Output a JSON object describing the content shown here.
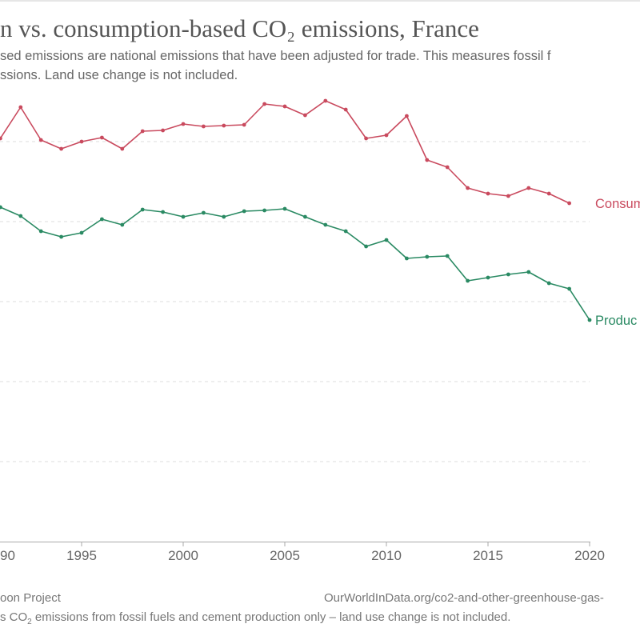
{
  "header": {
    "title": "n vs. consumption-based CO₂ emissions, France",
    "subtitle_line1": "sed emissions are national emissions that have been adjusted for trade. This measures fossil f",
    "subtitle_line2": "ssions. Land use change is not included."
  },
  "footer": {
    "source": "oon Project",
    "url": "OurWorldInData.org/co2-and-other-greenhouse-gas-",
    "note_prefix": "s CO",
    "note_sub": "2",
    "note_rest": " emissions from fossil fuels and cement production only – land use change is not included."
  },
  "chart_data": {
    "type": "line",
    "title": "n vs. consumption-based CO₂ emissions, France",
    "xlim": [
      1990,
      2020
    ],
    "ylim": [
      0,
      550
    ],
    "grid": true,
    "x_tick_labels": [
      {
        "year": 1990,
        "label": "90"
      },
      {
        "year": 1995,
        "label": "1995"
      },
      {
        "year": 2000,
        "label": "2000"
      },
      {
        "year": 2005,
        "label": "2005"
      },
      {
        "year": 2010,
        "label": "2010"
      },
      {
        "year": 2015,
        "label": "2015"
      },
      {
        "year": 2020,
        "label": "2020"
      }
    ],
    "y_gridlines": [
      100,
      200,
      300,
      400,
      500
    ],
    "series": [
      {
        "name": "Consum",
        "color": "#c94a5e",
        "x": [
          1991,
          1992,
          1993,
          1994,
          1995,
          1996,
          1997,
          1998,
          1999,
          2000,
          2001,
          2002,
          2003,
          2004,
          2005,
          2006,
          2007,
          2008,
          2009,
          2010,
          2011,
          2012,
          2013,
          2014,
          2015,
          2016,
          2017,
          2018,
          2019
        ],
        "y": [
          504,
          543,
          502,
          491,
          500,
          505,
          491,
          513,
          514,
          522,
          519,
          520,
          521,
          547,
          544,
          533,
          551,
          540,
          504,
          508,
          532,
          477,
          468,
          442,
          435,
          432,
          442,
          435,
          423
        ]
      },
      {
        "name": "Produc",
        "color": "#2a8a63",
        "x": [
          1991,
          1992,
          1993,
          1994,
          1995,
          1996,
          1997,
          1998,
          1999,
          2000,
          2001,
          2002,
          2003,
          2004,
          2005,
          2006,
          2007,
          2008,
          2009,
          2010,
          2011,
          2012,
          2013,
          2014,
          2015,
          2016,
          2017,
          2018,
          2019,
          2020
        ],
        "y": [
          418,
          407,
          388,
          381,
          386,
          403,
          396,
          415,
          412,
          406,
          411,
          406,
          413,
          414,
          416,
          406,
          396,
          388,
          369,
          377,
          354,
          356,
          357,
          326,
          330,
          334,
          337,
          323,
          316,
          277
        ]
      }
    ]
  }
}
